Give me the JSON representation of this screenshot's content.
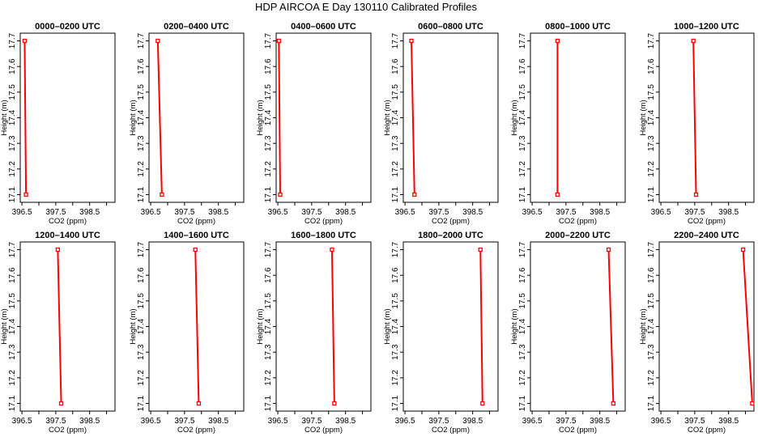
{
  "figure_title": "HDP AIRCOA E  Day 130110  Calibrated Profiles",
  "chart_data": [
    {
      "type": "line",
      "title": "0000–0200 UTC",
      "xlabel": "CO2 (ppm)",
      "ylabel": "Height (m)",
      "xticks": [
        "396.5",
        "397.5",
        "398.5"
      ],
      "yticks": [
        "17.1",
        "17.2",
        "17.3",
        "17.4",
        "17.5",
        "17.6",
        "17.7"
      ],
      "xlim": [
        396.45,
        399.25
      ],
      "ylim": [
        17.07,
        17.73
      ],
      "series": [
        {
          "x": [
            396.58,
            396.62
          ],
          "y": [
            17.7,
            17.1
          ],
          "color": "#ff0000"
        }
      ]
    },
    {
      "type": "line",
      "title": "0200–0400 UTC",
      "xlabel": "CO2 (ppm)",
      "ylabel": "Height (m)",
      "xticks": [
        "396.5",
        "397.5",
        "398.5"
      ],
      "yticks": [
        "17.1",
        "17.2",
        "17.3",
        "17.4",
        "17.5",
        "17.6",
        "17.7"
      ],
      "xlim": [
        396.45,
        399.25
      ],
      "ylim": [
        17.07,
        17.73
      ],
      "series": [
        {
          "x": [
            396.71,
            396.83
          ],
          "y": [
            17.7,
            17.1
          ],
          "color": "#ff0000"
        }
      ]
    },
    {
      "type": "line",
      "title": "0400–0600 UTC",
      "xlabel": "CO2 (ppm)",
      "ylabel": "Height (m)",
      "xticks": [
        "396.5",
        "397.5",
        "398.5"
      ],
      "yticks": [
        "17.1",
        "17.2",
        "17.3",
        "17.4",
        "17.5",
        "17.6",
        "17.7"
      ],
      "xlim": [
        396.45,
        399.25
      ],
      "ylim": [
        17.07,
        17.73
      ],
      "series": [
        {
          "x": [
            396.53,
            396.57
          ],
          "y": [
            17.7,
            17.1
          ],
          "color": "#ff0000"
        }
      ]
    },
    {
      "type": "line",
      "title": "0600–0800 UTC",
      "xlabel": "CO2 (ppm)",
      "ylabel": "Height (m)",
      "xticks": [
        "396.5",
        "397.5",
        "398.5"
      ],
      "yticks": [
        "17.1",
        "17.2",
        "17.3",
        "17.4",
        "17.5",
        "17.6",
        "17.7"
      ],
      "xlim": [
        396.45,
        399.25
      ],
      "ylim": [
        17.07,
        17.73
      ],
      "series": [
        {
          "x": [
            396.69,
            396.78
          ],
          "y": [
            17.7,
            17.1
          ],
          "color": "#ff0000"
        }
      ]
    },
    {
      "type": "line",
      "title": "0800–1000 UTC",
      "xlabel": "CO2 (ppm)",
      "ylabel": "Height (m)",
      "xticks": [
        "396.5",
        "397.5",
        "398.5"
      ],
      "yticks": [
        "17.1",
        "17.2",
        "17.3",
        "17.4",
        "17.5",
        "17.6",
        "17.7"
      ],
      "xlim": [
        396.45,
        399.25
      ],
      "ylim": [
        17.07,
        17.73
      ],
      "series": [
        {
          "x": [
            397.25,
            397.25
          ],
          "y": [
            17.7,
            17.1
          ],
          "color": "#ff0000"
        }
      ]
    },
    {
      "type": "line",
      "title": "1000–1200 UTC",
      "xlabel": "CO2 (ppm)",
      "ylabel": "Height (m)",
      "xticks": [
        "396.5",
        "397.5",
        "398.5"
      ],
      "yticks": [
        "17.1",
        "17.2",
        "17.3",
        "17.4",
        "17.5",
        "17.6",
        "17.7"
      ],
      "xlim": [
        396.45,
        399.25
      ],
      "ylim": [
        17.07,
        17.73
      ],
      "series": [
        {
          "x": [
            397.46,
            397.54
          ],
          "y": [
            17.7,
            17.1
          ],
          "color": "#ff0000"
        }
      ]
    },
    {
      "type": "line",
      "title": "1200–1400 UTC",
      "xlabel": "CO2 (ppm)",
      "ylabel": "Height (m)",
      "xticks": [
        "396.5",
        "397.5",
        "398.5"
      ],
      "yticks": [
        "17.1",
        "17.2",
        "17.3",
        "17.4",
        "17.5",
        "17.6",
        "17.7"
      ],
      "xlim": [
        396.45,
        399.25
      ],
      "ylim": [
        17.07,
        17.73
      ],
      "series": [
        {
          "x": [
            397.56,
            397.66
          ],
          "y": [
            17.7,
            17.1
          ],
          "color": "#ff0000"
        }
      ]
    },
    {
      "type": "line",
      "title": "1400–1600 UTC",
      "xlabel": "CO2 (ppm)",
      "ylabel": "Height (m)",
      "xticks": [
        "396.5",
        "397.5",
        "398.5"
      ],
      "yticks": [
        "17.1",
        "17.2",
        "17.3",
        "17.4",
        "17.5",
        "17.6",
        "17.7"
      ],
      "xlim": [
        396.45,
        399.25
      ],
      "ylim": [
        17.07,
        17.73
      ],
      "series": [
        {
          "x": [
            397.82,
            397.92
          ],
          "y": [
            17.7,
            17.1
          ],
          "color": "#ff0000"
        }
      ]
    },
    {
      "type": "line",
      "title": "1600–1800 UTC",
      "xlabel": "CO2 (ppm)",
      "ylabel": "Height (m)",
      "xticks": [
        "396.5",
        "397.5",
        "398.5"
      ],
      "yticks": [
        "17.1",
        "17.2",
        "17.3",
        "17.4",
        "17.5",
        "17.6",
        "17.7"
      ],
      "xlim": [
        396.45,
        399.25
      ],
      "ylim": [
        17.07,
        17.73
      ],
      "series": [
        {
          "x": [
            398.1,
            398.17
          ],
          "y": [
            17.7,
            17.1
          ],
          "color": "#ff0000"
        }
      ]
    },
    {
      "type": "line",
      "title": "1800–2000 UTC",
      "xlabel": "CO2 (ppm)",
      "ylabel": "Height (m)",
      "xticks": [
        "396.5",
        "397.5",
        "398.5"
      ],
      "yticks": [
        "17.1",
        "17.2",
        "17.3",
        "17.4",
        "17.5",
        "17.6",
        "17.7"
      ],
      "xlim": [
        396.45,
        399.25
      ],
      "ylim": [
        17.07,
        17.73
      ],
      "series": [
        {
          "x": [
            398.73,
            398.79
          ],
          "y": [
            17.7,
            17.1
          ],
          "color": "#ff0000"
        }
      ]
    },
    {
      "type": "line",
      "title": "2000–2200 UTC",
      "xlabel": "CO2 (ppm)",
      "ylabel": "Height (m)",
      "xticks": [
        "396.5",
        "397.5",
        "398.5"
      ],
      "yticks": [
        "17.1",
        "17.2",
        "17.3",
        "17.4",
        "17.5",
        "17.6",
        "17.7"
      ],
      "xlim": [
        396.45,
        399.25
      ],
      "ylim": [
        17.07,
        17.73
      ],
      "series": [
        {
          "x": [
            398.76,
            398.9
          ],
          "y": [
            17.7,
            17.1
          ],
          "color": "#ff0000"
        }
      ]
    },
    {
      "type": "line",
      "title": "2200–2400 UTC",
      "xlabel": "CO2 (ppm)",
      "ylabel": "Height (m)",
      "xticks": [
        "396.5",
        "397.5",
        "398.5"
      ],
      "yticks": [
        "17.1",
        "17.2",
        "17.3",
        "17.4",
        "17.5",
        "17.6",
        "17.7"
      ],
      "xlim": [
        396.45,
        399.25
      ],
      "ylim": [
        17.07,
        17.73
      ],
      "series": [
        {
          "x": [
            398.93,
            399.2
          ],
          "y": [
            17.7,
            17.1
          ],
          "color": "#ff0000"
        }
      ]
    }
  ]
}
